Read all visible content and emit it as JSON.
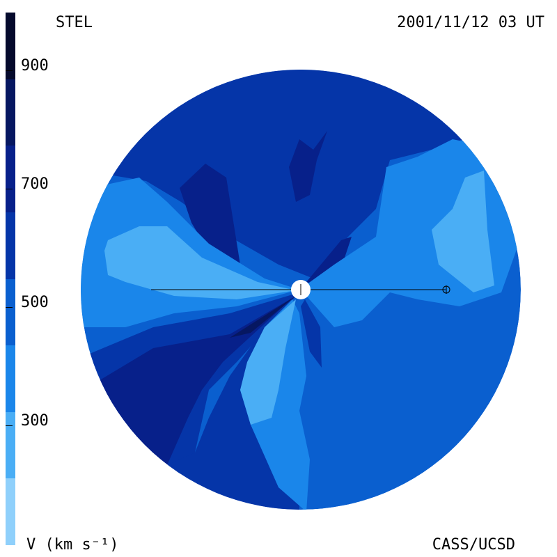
{
  "header": {
    "title": "STEL",
    "timestamp": "2001/11/12 03 UT"
  },
  "footer": {
    "unit": "V (km s⁻¹)",
    "credit": "CASS/UCSD"
  },
  "colorbar": {
    "levels": [
      {
        "color": "#050a2c"
      },
      {
        "color": "#061761"
      },
      {
        "color": "#07208a"
      },
      {
        "color": "#0535a8"
      },
      {
        "color": "#0a5fcf"
      },
      {
        "color": "#1a86ea"
      },
      {
        "color": "#4aaef5"
      },
      {
        "color": "#8fd0fb"
      }
    ],
    "ticks": [
      {
        "label": "900"
      },
      {
        "label": "700"
      },
      {
        "label": "500"
      },
      {
        "label": "300"
      }
    ]
  },
  "map": {
    "colors": {
      "background": "#0a5fcf",
      "medium": "#0535a8",
      "dark": "#07208a",
      "darker": "#061761",
      "light": "#1a86ea",
      "lighter": "#4aaef5"
    }
  }
}
